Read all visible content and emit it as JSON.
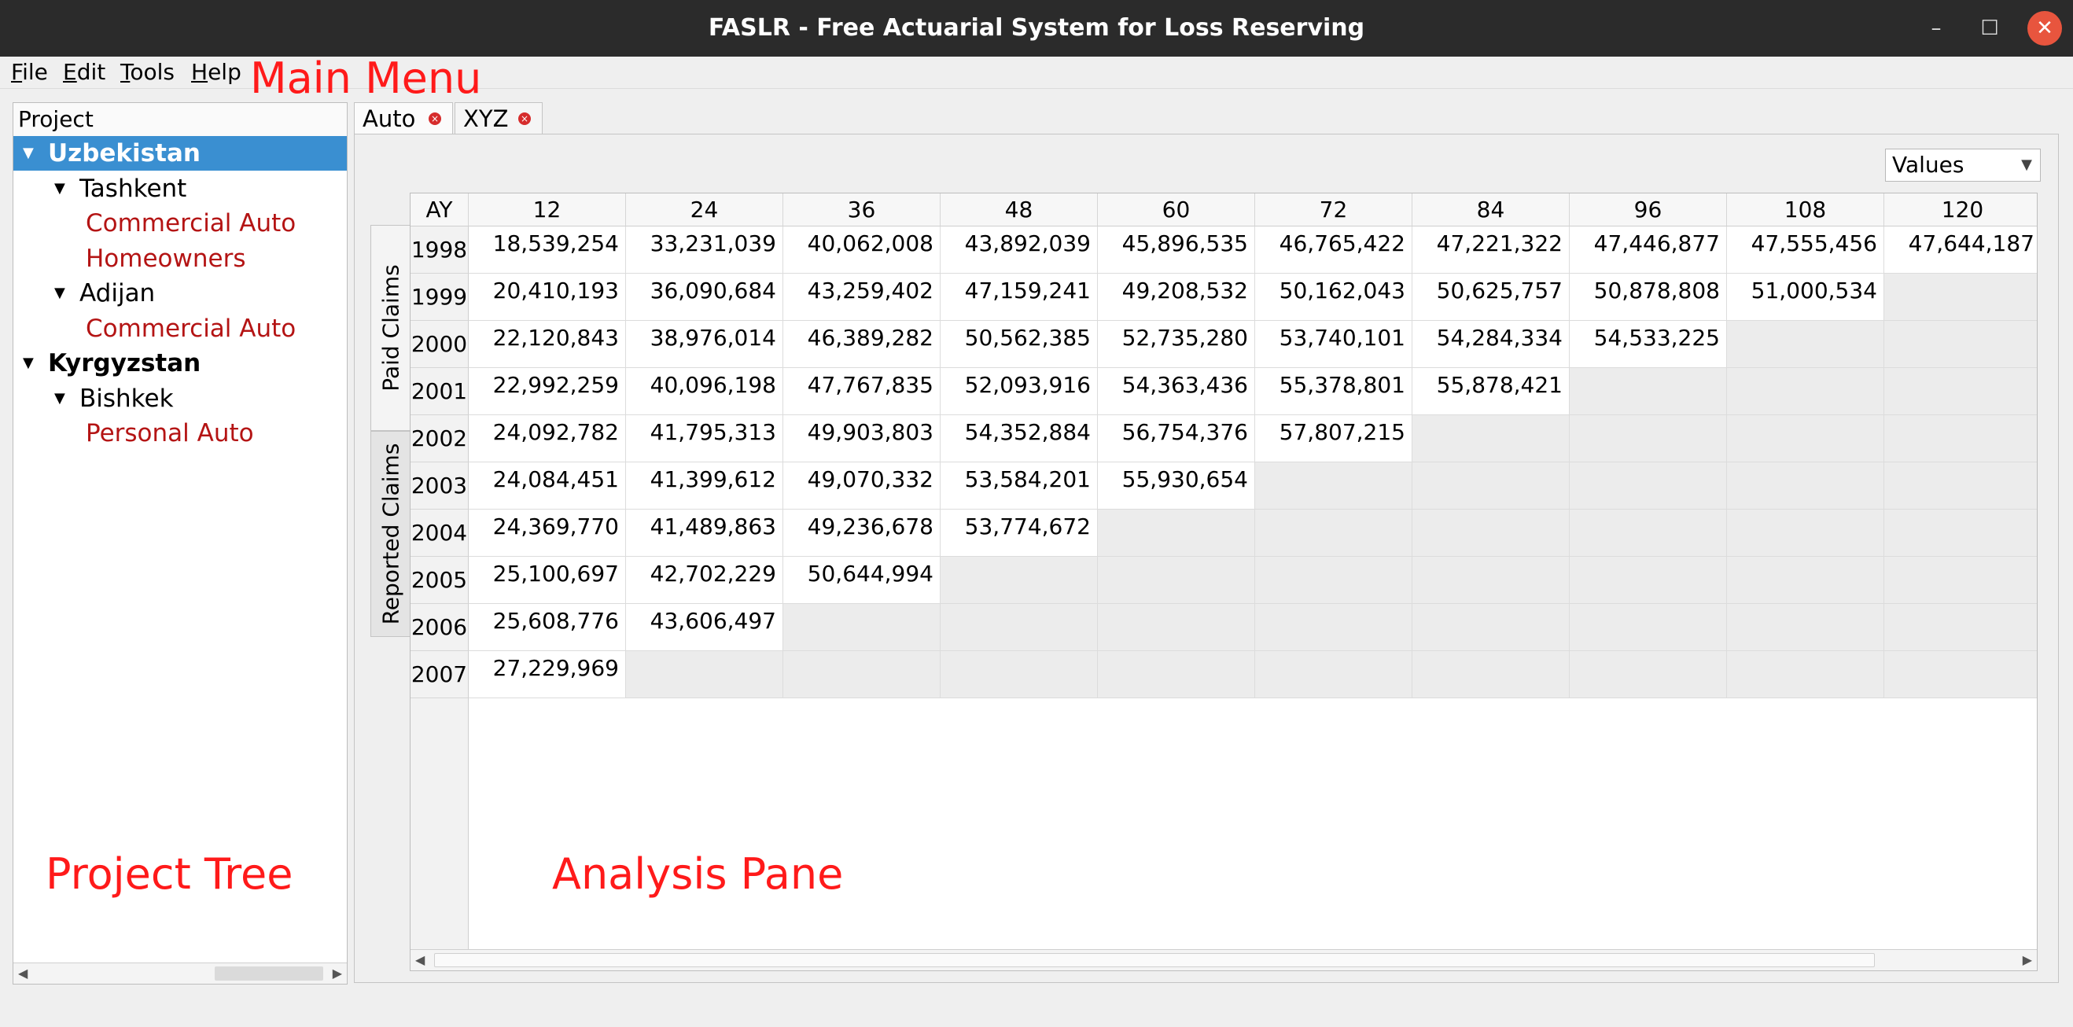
{
  "window": {
    "title": "FASLR - Free Actuarial System for Loss Reserving",
    "minimize_symbol": "–",
    "maximize_symbol": "☐",
    "close_symbol": "✕"
  },
  "menu": {
    "file": {
      "u": "F",
      "rest": "ile"
    },
    "edit": {
      "u": "E",
      "rest": "dit"
    },
    "tools": {
      "u": "T",
      "rest": "ools"
    },
    "help": {
      "u": "H",
      "rest": "elp"
    }
  },
  "annotations": {
    "main_menu": "Main Menu",
    "project_tree": "Project Tree",
    "analysis_pane": "Analysis Pane",
    "color": "#ff1a1a"
  },
  "tree": {
    "header": "Project",
    "expanded_arrow": "▼",
    "items": [
      {
        "label": "Uzbekistan",
        "level": 0,
        "bold": true,
        "selected": true,
        "expanded": true
      },
      {
        "label": "Tashkent",
        "level": 1,
        "expanded": true
      },
      {
        "label": "Commercial Auto",
        "level": 2,
        "leaf": true
      },
      {
        "label": "Homeowners",
        "level": 2,
        "leaf": true
      },
      {
        "label": "Adijan",
        "level": 1,
        "expanded": true
      },
      {
        "label": "Commercial Auto",
        "level": 2,
        "leaf": true
      },
      {
        "label": "Kyrgyzstan",
        "level": 0,
        "bold": true,
        "expanded": true
      },
      {
        "label": "Bishkek",
        "level": 1,
        "expanded": true
      },
      {
        "label": "Personal Auto",
        "level": 2,
        "leaf": true
      }
    ],
    "selected_color": "#3a8fd1",
    "leaf_color": "#b41414"
  },
  "tabs": [
    {
      "label": "Auto",
      "active": true
    },
    {
      "label": "XYZ",
      "active": false
    }
  ],
  "values_dropdown": {
    "selected": "Values",
    "caret": "▼"
  },
  "side_tabs": {
    "paid": "Paid Claims",
    "reported": "Reported Claims"
  },
  "scroll": {
    "left": "◀",
    "right": "▶"
  },
  "triangle": {
    "corner": "AY",
    "columns": [
      "12",
      "24",
      "36",
      "48",
      "60",
      "72",
      "84",
      "96",
      "108",
      "120"
    ],
    "rows": [
      {
        "ay": "1998",
        "values": [
          "18,539,254",
          "33,231,039",
          "40,062,008",
          "43,892,039",
          "45,896,535",
          "46,765,422",
          "47,221,322",
          "47,446,877",
          "47,555,456",
          "47,644,187"
        ]
      },
      {
        "ay": "1999",
        "values": [
          "20,410,193",
          "36,090,684",
          "43,259,402",
          "47,159,241",
          "49,208,532",
          "50,162,043",
          "50,625,757",
          "50,878,808",
          "51,000,534"
        ]
      },
      {
        "ay": "2000",
        "values": [
          "22,120,843",
          "38,976,014",
          "46,389,282",
          "50,562,385",
          "52,735,280",
          "53,740,101",
          "54,284,334",
          "54,533,225"
        ]
      },
      {
        "ay": "2001",
        "values": [
          "22,992,259",
          "40,096,198",
          "47,767,835",
          "52,093,916",
          "54,363,436",
          "55,378,801",
          "55,878,421"
        ]
      },
      {
        "ay": "2002",
        "values": [
          "24,092,782",
          "41,795,313",
          "49,903,803",
          "54,352,884",
          "56,754,376",
          "57,807,215"
        ]
      },
      {
        "ay": "2003",
        "values": [
          "24,084,451",
          "41,399,612",
          "49,070,332",
          "53,584,201",
          "55,930,654"
        ]
      },
      {
        "ay": "2004",
        "values": [
          "24,369,770",
          "41,489,863",
          "49,236,678",
          "53,774,672"
        ]
      },
      {
        "ay": "2005",
        "values": [
          "25,100,697",
          "42,702,229",
          "50,644,994"
        ]
      },
      {
        "ay": "2006",
        "values": [
          "25,608,776",
          "43,606,497"
        ]
      },
      {
        "ay": "2007",
        "values": [
          "27,229,969"
        ]
      }
    ]
  }
}
